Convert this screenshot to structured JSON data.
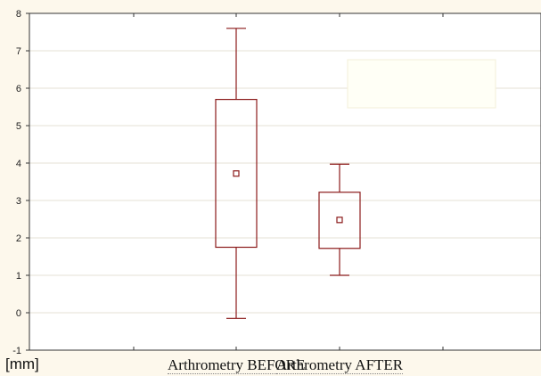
{
  "chart_data": {
    "type": "box",
    "ylabel": "[mm]",
    "ylim": [
      -1,
      8
    ],
    "yticks": [
      -1,
      0,
      1,
      2,
      3,
      4,
      5,
      6,
      7,
      8
    ],
    "grid": true,
    "categories": [
      "Arthrometry BEFORE",
      "Arthrometry AFTER"
    ],
    "boxes": [
      {
        "category": "Arthrometry BEFORE",
        "whisker_low": -0.15,
        "q1": 1.75,
        "median": 3.72,
        "q3": 5.7,
        "whisker_high": 7.6
      },
      {
        "category": "Arthrometry AFTER",
        "whisker_low": 1.0,
        "q1": 1.72,
        "median": 2.48,
        "q3": 3.22,
        "whisker_high": 3.97
      }
    ],
    "colors": {
      "box": "#8b1a1a",
      "grid": "#e6e2d6",
      "background": "#ffffff",
      "page": "#fdf8ec"
    }
  }
}
